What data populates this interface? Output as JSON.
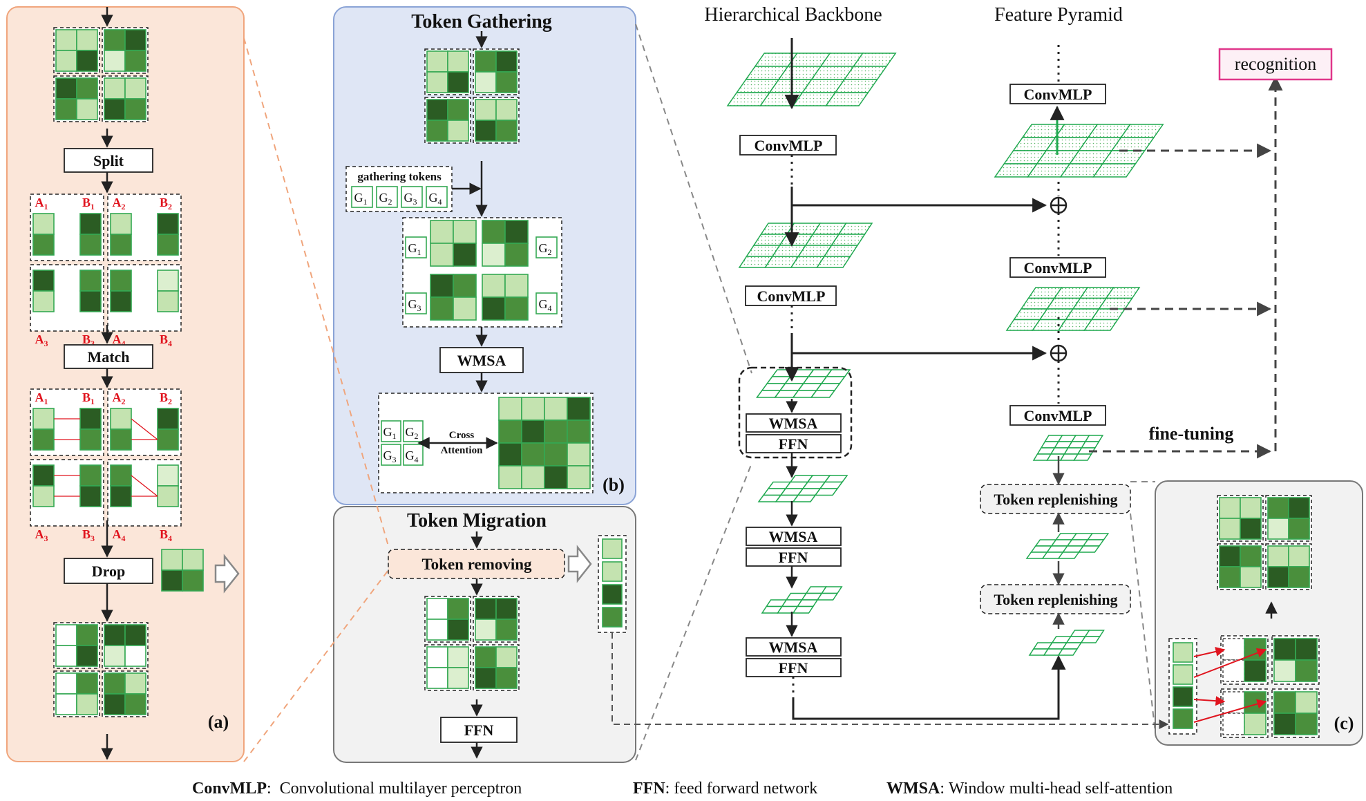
{
  "panel_a": {
    "split": "Split",
    "match": "Match",
    "drop": "Drop",
    "tag": "(a)",
    "labels": [
      "A",
      "B",
      "A",
      "B",
      "A",
      "B",
      "A",
      "B"
    ],
    "subs": [
      "1",
      "1",
      "2",
      "2",
      "3",
      "3",
      "4",
      "4"
    ]
  },
  "panel_b": {
    "title": "Token Gathering",
    "gathering_tokens": "gathering tokens",
    "g": "G",
    "g_subs": [
      "1",
      "2",
      "3",
      "4"
    ],
    "wmsa": "WMSA",
    "cross": "Cross",
    "attention": "Attention",
    "tag": "(b)"
  },
  "panel_migration": {
    "title": "Token Migration",
    "token_removing": "Token removing",
    "ffn": "FFN"
  },
  "backbone": {
    "title": "Hierarchical Backbone",
    "convmlp": "ConvMLP",
    "wmsa": "WMSA",
    "ffn": "FFN"
  },
  "pyramid": {
    "title": "Feature Pyramid",
    "convmlp": "ConvMLP",
    "token_replenishing": "Token replenishing",
    "fine_tuning": "fine-tuning",
    "recognition": "recognition"
  },
  "panel_c": {
    "tag": "(c)"
  },
  "legend": [
    {
      "term": "ConvMLP",
      "sep": ":",
      "desc": "Convolutional multilayer perceptron"
    },
    {
      "term": "FFN",
      "sep": ":",
      "desc": "feed forward network"
    },
    {
      "term": "WMSA",
      "sep": ":",
      "desc": "Window multi-head self-attention"
    }
  ],
  "colors": {
    "light": "#c4e3b0",
    "mid": "#4a8f3c",
    "dark": "#2b5c23",
    "veryLight": "#dcefcf",
    "stroke": "#34a853",
    "panel_a_bg": "#fbe6d9",
    "panel_a_border": "#f0a57c",
    "panel_b_bg": "#dfe6f5",
    "panel_b_border": "#8aa3d6",
    "panel_gray_bg": "#f2f2f2",
    "panel_gray_border": "#777777",
    "recognition_border": "#e0368a",
    "recognition_bg": "#fdf0f6"
  }
}
